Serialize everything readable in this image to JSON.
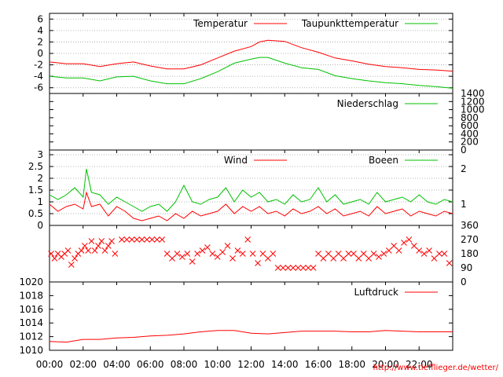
{
  "credit": "http://www.tiefflieger.de/wetter/",
  "colors": {
    "red": "#ff0000",
    "green": "#00c000",
    "grid": "#a0a0a0"
  },
  "x_tick_labels": [
    "00:00",
    "02:00",
    "04:00",
    "06:00",
    "08:00",
    "10:00",
    "12:00",
    "14:00",
    "16:00",
    "18:00",
    "20:00",
    "22:00"
  ],
  "chart_data": [
    {
      "type": "line",
      "title": "",
      "legend_position": "top-right",
      "x_unit": "hours",
      "xlim": [
        0,
        24
      ],
      "ylim": [
        -7,
        7
      ],
      "yticks": [
        -6,
        -4,
        -2,
        0,
        2,
        4,
        6
      ],
      "grid": true,
      "series": [
        {
          "name": "Temperatur",
          "color": "#ff0000",
          "x": [
            0,
            1,
            2,
            3,
            4,
            5,
            6,
            7,
            8,
            9,
            10,
            11,
            12,
            12.5,
            13,
            14,
            15,
            16,
            17,
            18,
            19,
            20,
            21,
            22,
            23,
            24
          ],
          "values": [
            -1.5,
            -1.8,
            -1.8,
            -2.3,
            -1.8,
            -1.5,
            -2.2,
            -2.7,
            -2.7,
            -2.0,
            -0.8,
            0.4,
            1.2,
            2.0,
            2.3,
            2.1,
            1.0,
            0.2,
            -0.8,
            -1.3,
            -1.9,
            -2.3,
            -2.5,
            -2.8,
            -2.9,
            -3.1
          ]
        },
        {
          "name": "Taupunkttemperatur",
          "color": "#00c000",
          "x": [
            0,
            1,
            2,
            3,
            4,
            5,
            6,
            7,
            8,
            9,
            10,
            11,
            12,
            12.5,
            13,
            14,
            15,
            16,
            17,
            18,
            19,
            20,
            21,
            22,
            23,
            24
          ],
          "values": [
            -4.0,
            -4.3,
            -4.3,
            -4.8,
            -4.1,
            -4.0,
            -4.8,
            -5.3,
            -5.3,
            -4.4,
            -3.2,
            -1.7,
            -1.0,
            -0.7,
            -0.7,
            -1.7,
            -2.5,
            -2.8,
            -3.9,
            -4.4,
            -4.8,
            -5.1,
            -5.3,
            -5.6,
            -5.8,
            -6.1
          ]
        }
      ]
    },
    {
      "type": "line",
      "title": "",
      "legend_position": "top-right",
      "xlim": [
        0,
        24
      ],
      "ylim": [
        0,
        1400
      ],
      "yticks": [
        0,
        200,
        400,
        600,
        800,
        1000,
        1200,
        1400
      ],
      "grid": false,
      "series": [
        {
          "name": "Niederschlag",
          "color": "#00c000",
          "x": [
            0,
            24
          ],
          "values": [
            0,
            0
          ]
        }
      ]
    },
    {
      "type": "line",
      "title": "",
      "legend_position": "top-right",
      "xlim": [
        0,
        24
      ],
      "ylim": [
        0,
        3.2
      ],
      "yticks": [
        0,
        0.5,
        1,
        1.5,
        2,
        2.5,
        3
      ],
      "y2ticks": [
        1,
        2
      ],
      "grid": true,
      "series": [
        {
          "name": "Wind",
          "color": "#ff0000",
          "x": [
            0,
            0.5,
            1,
            1.5,
            2,
            2.2,
            2.5,
            3,
            3.5,
            4,
            4.5,
            5,
            5.5,
            6,
            6.5,
            7,
            7.5,
            8,
            8.5,
            9,
            9.5,
            10,
            10.5,
            11,
            11.5,
            12,
            12.5,
            13,
            13.5,
            14,
            14.5,
            15,
            15.5,
            16,
            16.5,
            17,
            17.5,
            18,
            18.5,
            19,
            19.5,
            20,
            20.5,
            21,
            21.5,
            22,
            22.5,
            23,
            23.5,
            24
          ],
          "values": [
            0.9,
            0.6,
            0.8,
            0.9,
            0.7,
            1.4,
            0.8,
            0.9,
            0.4,
            0.8,
            0.6,
            0.3,
            0.2,
            0.3,
            0.4,
            0.2,
            0.5,
            0.3,
            0.6,
            0.4,
            0.5,
            0.6,
            0.9,
            0.5,
            0.8,
            0.6,
            0.8,
            0.5,
            0.6,
            0.4,
            0.7,
            0.5,
            0.6,
            0.8,
            0.5,
            0.7,
            0.4,
            0.5,
            0.6,
            0.4,
            0.8,
            0.5,
            0.6,
            0.7,
            0.4,
            0.6,
            0.5,
            0.4,
            0.6,
            0.5
          ]
        },
        {
          "name": "Boeen",
          "color": "#00c000",
          "x": [
            0,
            0.5,
            1,
            1.5,
            2,
            2.2,
            2.5,
            3,
            3.5,
            4,
            4.5,
            5,
            5.5,
            6,
            6.5,
            7,
            7.5,
            8,
            8.5,
            9,
            9.5,
            10,
            10.5,
            11,
            11.5,
            12,
            12.5,
            13,
            13.5,
            14,
            14.5,
            15,
            15.5,
            16,
            16.5,
            17,
            17.5,
            18,
            18.5,
            19,
            19.5,
            20,
            20.5,
            21,
            21.5,
            22,
            22.5,
            23,
            23.5,
            24
          ],
          "values": [
            1.3,
            1.1,
            1.3,
            1.6,
            1.2,
            2.4,
            1.4,
            1.3,
            0.9,
            1.2,
            1.0,
            0.8,
            0.6,
            0.8,
            0.9,
            0.6,
            1.0,
            1.7,
            1.0,
            0.9,
            1.1,
            1.2,
            1.6,
            1.0,
            1.5,
            1.2,
            1.4,
            1.0,
            1.1,
            0.9,
            1.3,
            1.0,
            1.1,
            1.6,
            1.0,
            1.3,
            0.9,
            1.0,
            1.1,
            0.9,
            1.4,
            1.0,
            1.1,
            1.2,
            1.0,
            1.3,
            1.0,
            0.9,
            1.1,
            1.0
          ]
        }
      ]
    },
    {
      "type": "scatter",
      "title": "",
      "xlim": [
        0,
        24
      ],
      "ylim": [
        0,
        360
      ],
      "y2ticks": [
        0,
        90,
        180,
        270,
        360
      ],
      "grid": false,
      "series": [
        {
          "name": "",
          "color": "#ff0000",
          "x": [
            0.1,
            0.3,
            0.5,
            0.7,
            0.9,
            1.1,
            1.3,
            1.5,
            1.7,
            1.9,
            2.1,
            2.3,
            2.5,
            2.7,
            2.9,
            3.1,
            3.3,
            3.5,
            3.7,
            3.9,
            4.3,
            4.6,
            4.9,
            5.2,
            5.5,
            5.8,
            6.1,
            6.4,
            6.7,
            7.0,
            7.3,
            7.6,
            7.9,
            8.2,
            8.5,
            8.8,
            9.1,
            9.4,
            9.7,
            10.0,
            10.3,
            10.6,
            10.9,
            11.2,
            11.5,
            11.8,
            12.1,
            12.4,
            12.7,
            13.0,
            13.3,
            13.6,
            13.9,
            14.2,
            14.5,
            14.8,
            15.1,
            15.4,
            15.7,
            16.0,
            16.3,
            16.6,
            16.9,
            17.2,
            17.5,
            17.8,
            18.1,
            18.4,
            18.7,
            19.0,
            19.3,
            19.6,
            19.9,
            20.2,
            20.5,
            20.8,
            21.1,
            21.4,
            21.7,
            22.0,
            22.3,
            22.6,
            22.9,
            23.2,
            23.5,
            23.8
          ],
          "values": [
            180,
            150,
            180,
            160,
            180,
            200,
            110,
            150,
            180,
            200,
            230,
            200,
            260,
            200,
            230,
            260,
            200,
            230,
            260,
            180,
            270,
            270,
            270,
            270,
            270,
            270,
            270,
            270,
            270,
            180,
            150,
            180,
            160,
            180,
            130,
            180,
            200,
            220,
            180,
            160,
            190,
            230,
            150,
            200,
            180,
            270,
            180,
            120,
            180,
            150,
            180,
            90,
            90,
            90,
            90,
            90,
            90,
            90,
            90,
            180,
            150,
            180,
            150,
            180,
            150,
            180,
            180,
            150,
            180,
            150,
            180,
            160,
            180,
            200,
            230,
            200,
            250,
            270,
            230,
            200,
            180,
            200,
            150,
            180,
            180,
            120
          ]
        }
      ]
    },
    {
      "type": "line",
      "title": "",
      "legend_position": "top-right",
      "xlim": [
        0,
        24
      ],
      "ylim": [
        1010,
        1020
      ],
      "yticks": [
        1010,
        1012,
        1014,
        1016,
        1018,
        1020
      ],
      "grid": false,
      "series": [
        {
          "name": "Luftdruck",
          "color": "#ff0000",
          "x": [
            0,
            1,
            2,
            3,
            4,
            5,
            6,
            7,
            8,
            9,
            10,
            11,
            12,
            13,
            14,
            15,
            16,
            17,
            18,
            19,
            20,
            21,
            22,
            23,
            24
          ],
          "values": [
            1011.3,
            1011.2,
            1011.6,
            1011.6,
            1011.8,
            1011.9,
            1012.1,
            1012.2,
            1012.4,
            1012.7,
            1012.9,
            1012.9,
            1012.5,
            1012.4,
            1012.6,
            1012.8,
            1012.8,
            1012.8,
            1012.7,
            1012.7,
            1012.9,
            1012.8,
            1012.7,
            1012.7,
            1012.7
          ]
        }
      ]
    }
  ]
}
